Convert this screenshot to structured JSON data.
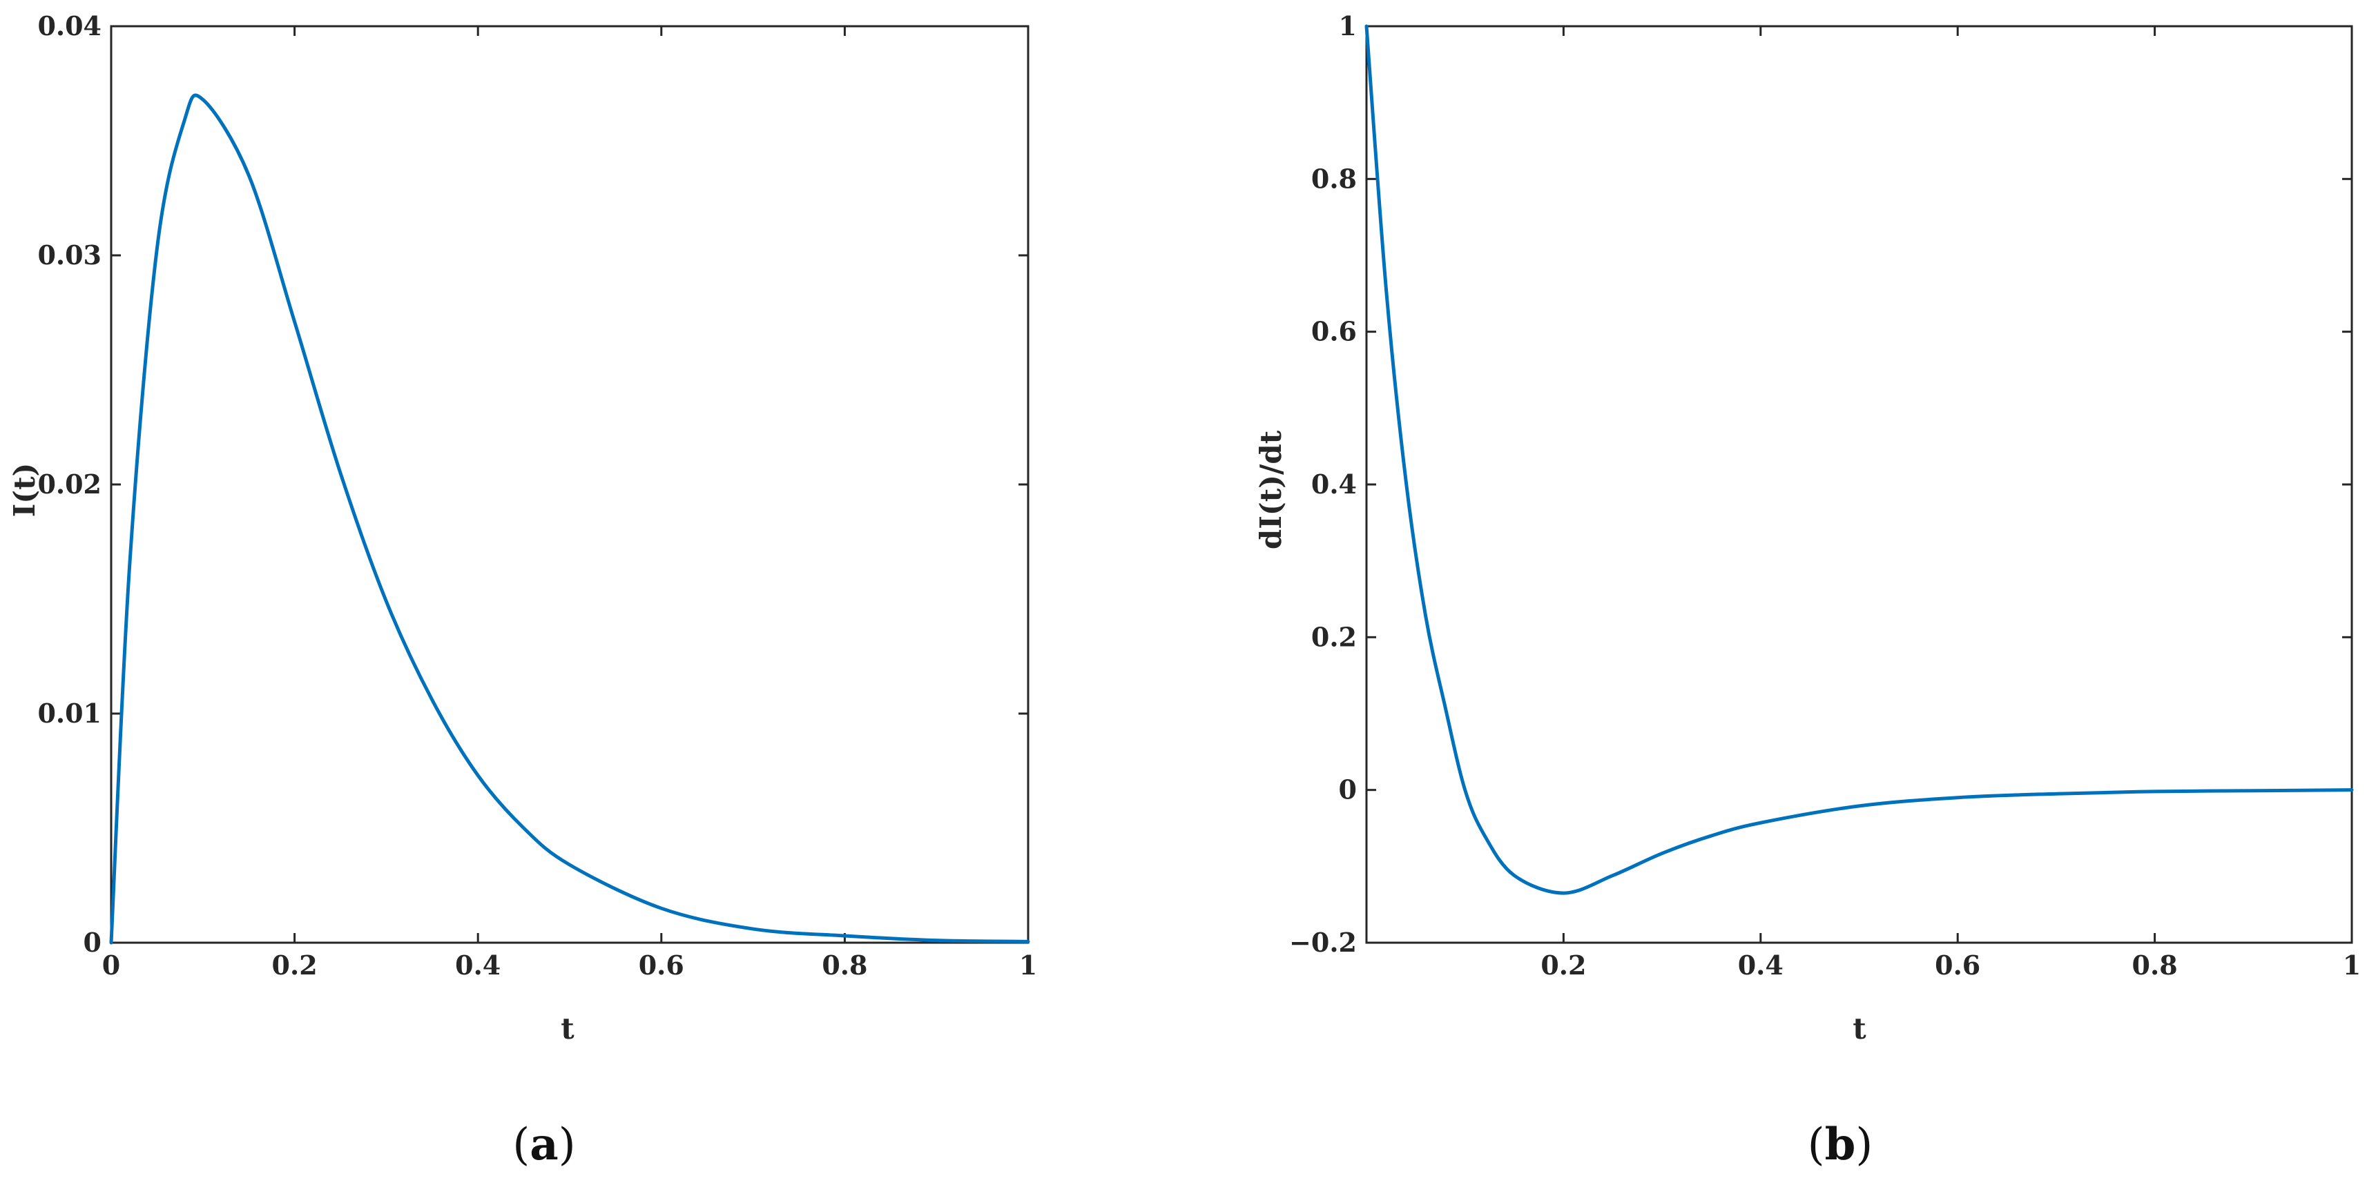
{
  "colors": {
    "series": "#0072BD",
    "axes": "#262626"
  },
  "chart_data": [
    {
      "type": "line",
      "panel": "a",
      "xlabel": "t",
      "ylabel": "I(t)",
      "xlim": [
        0,
        1
      ],
      "ylim": [
        0,
        0.04
      ],
      "xticks": [
        0,
        0.2,
        0.4,
        0.6,
        0.8,
        1
      ],
      "xtick_labels": [
        "0",
        "0.2",
        "0.4",
        "0.6",
        "0.8",
        "1"
      ],
      "yticks": [
        0,
        0.01,
        0.02,
        0.03,
        0.04
      ],
      "ytick_labels": [
        "0",
        "0.01",
        "0.02",
        "0.03",
        "0.04"
      ],
      "grid": false,
      "series": [
        {
          "x": [
            0,
            0.02,
            0.05,
            0.08,
            0.1,
            0.15,
            0.2,
            0.25,
            0.3,
            0.35,
            0.4,
            0.45,
            0.5,
            0.6,
            0.7,
            0.8,
            0.9,
            1.0
          ],
          "y": [
            0,
            0.0164,
            0.0303,
            0.0359,
            0.0368,
            0.0335,
            0.0271,
            0.0205,
            0.0149,
            0.0106,
            0.0073,
            0.005,
            0.0034,
            0.0015,
            0.0006,
            0.0003,
            0.0001,
            5e-05
          ]
        }
      ]
    },
    {
      "type": "line",
      "panel": "b",
      "xlabel": "t",
      "ylabel": "dI(t)/dt",
      "xlim": [
        0,
        1
      ],
      "ylim": [
        -0.2,
        1
      ],
      "xticks": [
        0.2,
        0.4,
        0.6,
        0.8,
        1
      ],
      "xtick_labels": [
        "0.2",
        "0.4",
        "0.6",
        "0.8",
        "1"
      ],
      "yticks": [
        -0.2,
        0,
        0.2,
        0.4,
        0.6,
        0.8,
        1
      ],
      "ytick_labels": [
        "−0.2",
        "0",
        "0.2",
        "0.4",
        "0.6",
        "0.8",
        "1"
      ],
      "grid": false,
      "series": [
        {
          "x": [
            0,
            0.02,
            0.04,
            0.06,
            0.08,
            0.1,
            0.12,
            0.15,
            0.2,
            0.25,
            0.3,
            0.35,
            0.4,
            0.5,
            0.6,
            0.7,
            0.8,
            0.9,
            1.0
          ],
          "y": [
            1.0,
            0.655,
            0.405,
            0.228,
            0.108,
            0.0,
            -0.06,
            -0.112,
            -0.135,
            -0.112,
            -0.083,
            -0.06,
            -0.043,
            -0.021,
            -0.01,
            -0.005,
            -0.002,
            -0.001,
            0.0
          ]
        }
      ]
    }
  ],
  "panels": {
    "a": {
      "label_open": "(",
      "label_letter": "a",
      "label_close": ")"
    },
    "b": {
      "label_open": "(",
      "label_letter": "b",
      "label_close": ")"
    }
  }
}
